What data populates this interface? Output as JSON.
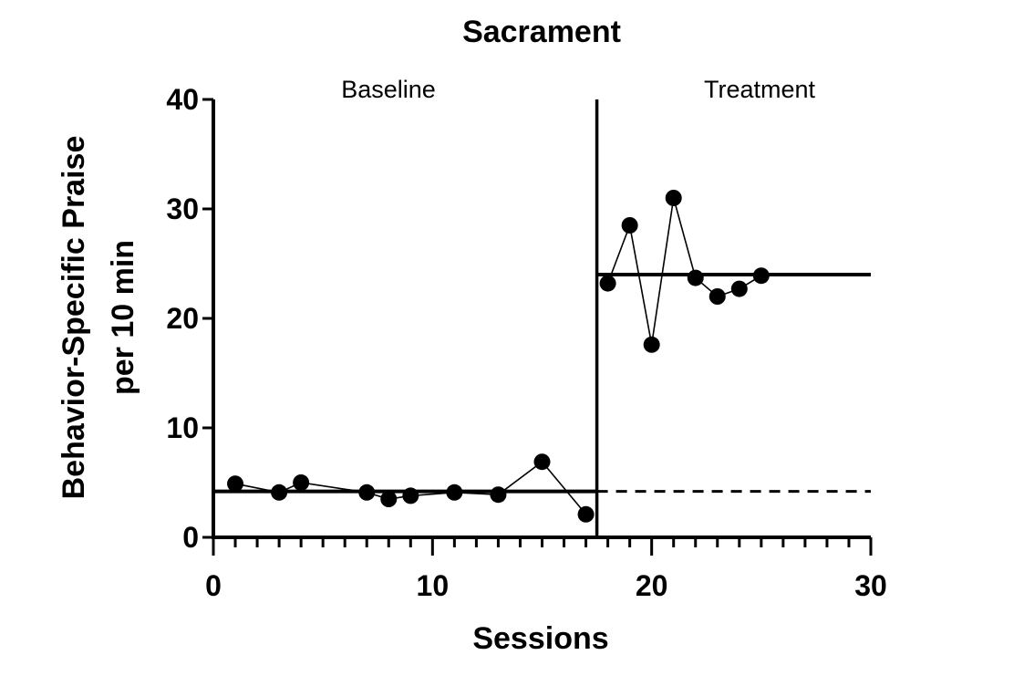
{
  "chart_data": {
    "type": "line",
    "title": "Sacrament",
    "xlabel": "Sessions",
    "ylabel_lines": [
      "Behavior-Specific Praise",
      "per 10 min"
    ],
    "xlim": [
      0,
      30
    ],
    "ylim": [
      0,
      40
    ],
    "x_major_ticks": [
      0,
      10,
      20,
      30
    ],
    "y_major_ticks": [
      0,
      10,
      20,
      30,
      40
    ],
    "x_minor_step": 1,
    "grid": false,
    "phase_change_x": 17.5,
    "phases": [
      {
        "label": "Baseline",
        "x_range": [
          0,
          17.5
        ]
      },
      {
        "label": "Treatment",
        "x_range": [
          17.5,
          30
        ]
      }
    ],
    "series": [
      {
        "x": [
          1,
          3,
          4,
          7,
          8,
          9,
          11,
          13,
          15,
          17
        ],
        "y": [
          4.9,
          4.1,
          5.0,
          4.1,
          3.5,
          3.8,
          4.1,
          3.9,
          6.9,
          2.1
        ]
      },
      {
        "x": [
          18,
          19,
          20,
          21,
          22,
          23,
          24,
          25
        ],
        "y": [
          23.2,
          28.5,
          17.6,
          31.0,
          23.7,
          22.0,
          22.7,
          23.9
        ]
      }
    ],
    "mean_lines": [
      {
        "value": 4.2,
        "x_range": [
          0,
          17.5
        ],
        "style": "solid"
      },
      {
        "value": 4.2,
        "x_range": [
          17.5,
          30
        ],
        "style": "dashed"
      },
      {
        "value": 24.0,
        "x_range": [
          17.5,
          30
        ],
        "style": "solid"
      }
    ]
  }
}
